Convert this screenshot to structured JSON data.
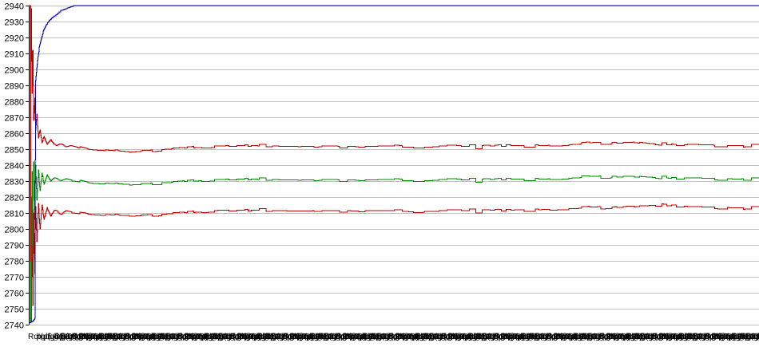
{
  "chart_data": {
    "type": "line",
    "title": "",
    "legend": "none",
    "grid": "horizontal-only",
    "background": "#ffffff",
    "colors": {
      "gridline": "#c0c0c0",
      "axis": "#000000",
      "tick": "#000000",
      "text": "#000000",
      "blue_series": "#0000b0",
      "red_series": "#bb0000",
      "green_series": "#008a00"
    },
    "y_axis": {
      "min": 2740,
      "max": 2940,
      "tick_step": 10,
      "tick_labels": [
        "2940",
        "2930",
        "2920",
        "2910",
        "2900",
        "2890",
        "2880",
        "2870",
        "2860",
        "2850",
        "2840",
        "2830",
        "2820",
        "2810",
        "2800",
        "2790",
        "2780",
        "2770",
        "2760",
        "2750",
        "2740"
      ]
    },
    "x_axis": {
      "tick_labels_overlapping_illegible": true,
      "label_count": 84,
      "label_spacing_px": 11,
      "first_char_visible": "R",
      "sample_labels": [
        "Rqt(p5@B3:0d)",
        "bql(g6@D8:1t)",
        "dqd(p5@R9:3p)",
        "tqb(g6@B3:4d)",
        "pqt(p5@D6:2b)",
        "bqd(g6@B8:0t)"
      ]
    },
    "noise": {
      "amplitude": 1,
      "seed": 11,
      "applies_to": [
        "red-upper-line",
        "green-line",
        "red-lower-line"
      ]
    },
    "series": [
      {
        "name": "blue-line",
        "color": "#0000b0",
        "steady_value": 2940,
        "points": [
          [
            0,
            2741
          ],
          [
            0.55,
            2742
          ],
          [
            0.8,
            2744
          ],
          [
            0.95,
            2893
          ],
          [
            1.1,
            2901
          ],
          [
            1.25,
            2908
          ],
          [
            1.45,
            2914
          ],
          [
            1.7,
            2919
          ],
          [
            2.0,
            2924
          ],
          [
            2.4,
            2928
          ],
          [
            2.9,
            2931
          ],
          [
            3.4,
            2933
          ],
          [
            3.9,
            2935
          ],
          [
            4.4,
            2937
          ],
          [
            5.0,
            2938
          ],
          [
            5.6,
            2939
          ],
          [
            6.2,
            2940
          ],
          [
            100,
            2940
          ]
        ]
      },
      {
        "name": "red-upper-line",
        "color": "#bb0000",
        "steady_value": 2852,
        "points": [
          [
            0.15,
            2940
          ],
          [
            0.2,
            2780
          ],
          [
            0.25,
            2940
          ],
          [
            0.3,
            2905
          ],
          [
            0.35,
            2938
          ],
          [
            0.45,
            2885
          ],
          [
            0.55,
            2912
          ],
          [
            0.65,
            2868
          ],
          [
            0.8,
            2882
          ],
          [
            0.95,
            2862
          ],
          [
            1.1,
            2872
          ],
          [
            1.3,
            2857
          ],
          [
            1.55,
            2862
          ],
          [
            1.8,
            2854
          ],
          [
            2.1,
            2858
          ],
          [
            2.5,
            2853
          ],
          [
            3.0,
            2856
          ],
          [
            3.6,
            2852.5
          ],
          [
            4.3,
            2854
          ],
          [
            5.0,
            2852
          ],
          [
            6.0,
            2853
          ],
          [
            7.0,
            2851.5
          ],
          [
            8.0,
            2850.5
          ],
          [
            9.0,
            2850
          ],
          [
            10.5,
            2849.5
          ],
          [
            12,
            2849
          ],
          [
            13.5,
            2848.5
          ],
          [
            15,
            2849
          ],
          [
            17,
            2849.5
          ],
          [
            19,
            2850
          ],
          [
            21,
            2850.5
          ],
          [
            23,
            2851.5
          ],
          [
            25.5,
            2852
          ],
          [
            29,
            2852.3
          ],
          [
            33,
            2852
          ],
          [
            37,
            2851.6
          ],
          [
            41,
            2852
          ],
          [
            45,
            2851.6
          ],
          [
            49,
            2852
          ],
          [
            53,
            2851.7
          ],
          [
            57,
            2852
          ],
          [
            61,
            2851.7
          ],
          [
            65,
            2852.2
          ],
          [
            69,
            2852.3
          ],
          [
            72,
            2852.4
          ],
          [
            75,
            2853
          ],
          [
            78,
            2853.8
          ],
          [
            80.5,
            2854.3
          ],
          [
            83.5,
            2854.4
          ],
          [
            86,
            2853.2
          ],
          [
            88.5,
            2852.6
          ],
          [
            91,
            2853
          ],
          [
            94,
            2852.6
          ],
          [
            97,
            2852.2
          ],
          [
            100,
            2852.6
          ]
        ]
      },
      {
        "name": "green-line",
        "color": "#008a00",
        "steady_value": 2831,
        "points": [
          [
            0.15,
            2742
          ],
          [
            0.2,
            2856
          ],
          [
            0.25,
            2741
          ],
          [
            0.3,
            2820
          ],
          [
            0.35,
            2744
          ],
          [
            0.45,
            2836
          ],
          [
            0.55,
            2782
          ],
          [
            0.65,
            2842
          ],
          [
            0.8,
            2806
          ],
          [
            0.95,
            2840
          ],
          [
            1.1,
            2818
          ],
          [
            1.3,
            2837
          ],
          [
            1.55,
            2824
          ],
          [
            1.8,
            2835
          ],
          [
            2.1,
            2828
          ],
          [
            2.5,
            2834
          ],
          [
            3.0,
            2830
          ],
          [
            3.6,
            2832.5
          ],
          [
            4.3,
            2830.5
          ],
          [
            5.0,
            2832
          ],
          [
            6.0,
            2831
          ],
          [
            7.0,
            2830.5
          ],
          [
            8.0,
            2829.5
          ],
          [
            9.0,
            2829
          ],
          [
            10.5,
            2828.7
          ],
          [
            12,
            2828.3
          ],
          [
            13.5,
            2828
          ],
          [
            15,
            2828.3
          ],
          [
            17,
            2828.7
          ],
          [
            19,
            2829
          ],
          [
            21,
            2829.6
          ],
          [
            23,
            2830.6
          ],
          [
            25.5,
            2831
          ],
          [
            29,
            2831.3
          ],
          [
            33,
            2831
          ],
          [
            37,
            2830.6
          ],
          [
            41,
            2831
          ],
          [
            45,
            2830.6
          ],
          [
            49,
            2831
          ],
          [
            53,
            2830.7
          ],
          [
            57,
            2831
          ],
          [
            61,
            2830.7
          ],
          [
            65,
            2831.2
          ],
          [
            69,
            2831.3
          ],
          [
            72,
            2831.4
          ],
          [
            75,
            2832
          ],
          [
            78,
            2832.6
          ],
          [
            80.5,
            2833
          ],
          [
            83.5,
            2833
          ],
          [
            86,
            2832.2
          ],
          [
            88.5,
            2831.7
          ],
          [
            91,
            2832
          ],
          [
            94,
            2831.7
          ],
          [
            97,
            2831.3
          ],
          [
            100,
            2831.6
          ]
        ]
      },
      {
        "name": "red-lower-line",
        "color": "#bb0000",
        "steady_value": 2812,
        "points": [
          [
            0.15,
            2744
          ],
          [
            0.2,
            2805
          ],
          [
            0.25,
            2741
          ],
          [
            0.3,
            2788
          ],
          [
            0.35,
            2742
          ],
          [
            0.45,
            2798
          ],
          [
            0.55,
            2752
          ],
          [
            0.65,
            2810
          ],
          [
            0.8,
            2772
          ],
          [
            0.95,
            2814
          ],
          [
            1.1,
            2792
          ],
          [
            1.3,
            2816
          ],
          [
            1.55,
            2800
          ],
          [
            1.8,
            2815
          ],
          [
            2.1,
            2806
          ],
          [
            2.5,
            2813.5
          ],
          [
            3.0,
            2808
          ],
          [
            3.6,
            2812.5
          ],
          [
            4.3,
            2809.5
          ],
          [
            5.0,
            2812
          ],
          [
            6.0,
            2811
          ],
          [
            7.0,
            2810.5
          ],
          [
            8.0,
            2809.8
          ],
          [
            9.0,
            2809.3
          ],
          [
            10.5,
            2809
          ],
          [
            12,
            2808.7
          ],
          [
            13.5,
            2808.4
          ],
          [
            15,
            2808.7
          ],
          [
            17,
            2809
          ],
          [
            19,
            2809.4
          ],
          [
            21,
            2810
          ],
          [
            23,
            2811
          ],
          [
            25.5,
            2811.6
          ],
          [
            29,
            2811.8
          ],
          [
            33,
            2811.6
          ],
          [
            37,
            2811.2
          ],
          [
            41,
            2811.6
          ],
          [
            45,
            2811.3
          ],
          [
            49,
            2811.6
          ],
          [
            53,
            2811.3
          ],
          [
            57,
            2811.6
          ],
          [
            61,
            2811.4
          ],
          [
            65,
            2811.8
          ],
          [
            69,
            2812
          ],
          [
            72,
            2812.3
          ],
          [
            75,
            2812.8
          ],
          [
            78,
            2813.4
          ],
          [
            80.5,
            2813.9
          ],
          [
            83.5,
            2814.4
          ],
          [
            86,
            2814.8
          ],
          [
            88.5,
            2814.4
          ],
          [
            91,
            2814
          ],
          [
            94,
            2813.7
          ],
          [
            97,
            2813.2
          ],
          [
            100,
            2813.6
          ]
        ]
      }
    ]
  }
}
